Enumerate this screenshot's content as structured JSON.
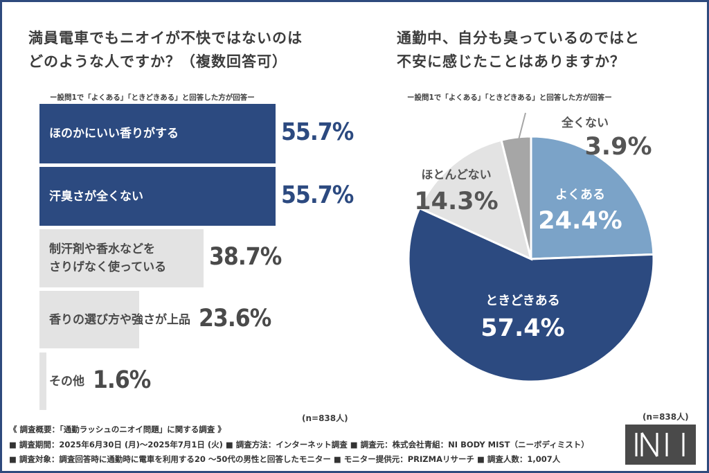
{
  "left_title": [
    "満員電車でもニオイが不快ではないのは",
    "どのような人ですか？（複数回答可）"
  ],
  "left_subtitle": "ー設問1で「よくある」「ときどきある」と回答した方が回答ー",
  "right_title": [
    "通勤中、自分も臭っているのではと",
    "不安に感じたことはありますか？"
  ],
  "right_subtitle": "ー設問1で「よくある」「ときどきある」と回答した方が回答ー",
  "left_n": "(n=838人)",
  "right_n": "(n=838人)",
  "colors": {
    "primary": "#2c4a80",
    "light_blue": "#7ba3c8",
    "light_gray": "#e3e3e3",
    "mid_gray": "#a6a6a6"
  },
  "chart_data": [
    {
      "type": "bar",
      "orientation": "horizontal",
      "title": "満員電車でもニオイが不快ではないのはどのような人ですか？（複数回答可）",
      "categories": [
        [
          "ほのかにいい香りがする"
        ],
        [
          "汗臭さが全くない"
        ],
        [
          "制汗剤や香水などを",
          "さりげなく使っている"
        ],
        [
          "香りの選び方や強さが上品"
        ],
        [
          "その他"
        ]
      ],
      "values": [
        55.7,
        55.7,
        38.7,
        23.6,
        1.6
      ],
      "labels": [
        "55.7%",
        "55.7%",
        "38.7%",
        "23.6%",
        "1.6%"
      ],
      "highlight": [
        true,
        true,
        false,
        false,
        false
      ],
      "xlim": [
        0,
        100
      ]
    },
    {
      "type": "pie",
      "title": "通勤中、自分も臭っているのではと不安に感じたことはありますか？",
      "categories": [
        "よくある",
        "ときどきある",
        "ほとんどない",
        "全くない"
      ],
      "values": [
        24.4,
        57.4,
        14.3,
        3.9
      ],
      "labels": [
        "24.4%",
        "57.4%",
        "14.3%",
        "3.9%"
      ],
      "colors": [
        "#7ba3c8",
        "#2c4a80",
        "#e3e3e3",
        "#a6a6a6"
      ],
      "start": "12 o'clock, clockwise"
    }
  ],
  "footer": {
    "line1": "《 調査概要：「通勤ラッシュのニオイ問題」に関する調査 》",
    "line2": "■ 調査期間：2025年6月30日 (月)〜2025年7月1日 (火) ■ 調査方法：インターネット調査 ■ 調査元：株式会社青組：NI BODY MIST（ニーボディミスト）",
    "line3": "■ 調査対象：調査回答時に通勤時に電車を利用する20 〜50代の男性と回答したモニター ■ モニター提供元：PRIZMAリサーチ ■ 調査人数：1,007人"
  }
}
